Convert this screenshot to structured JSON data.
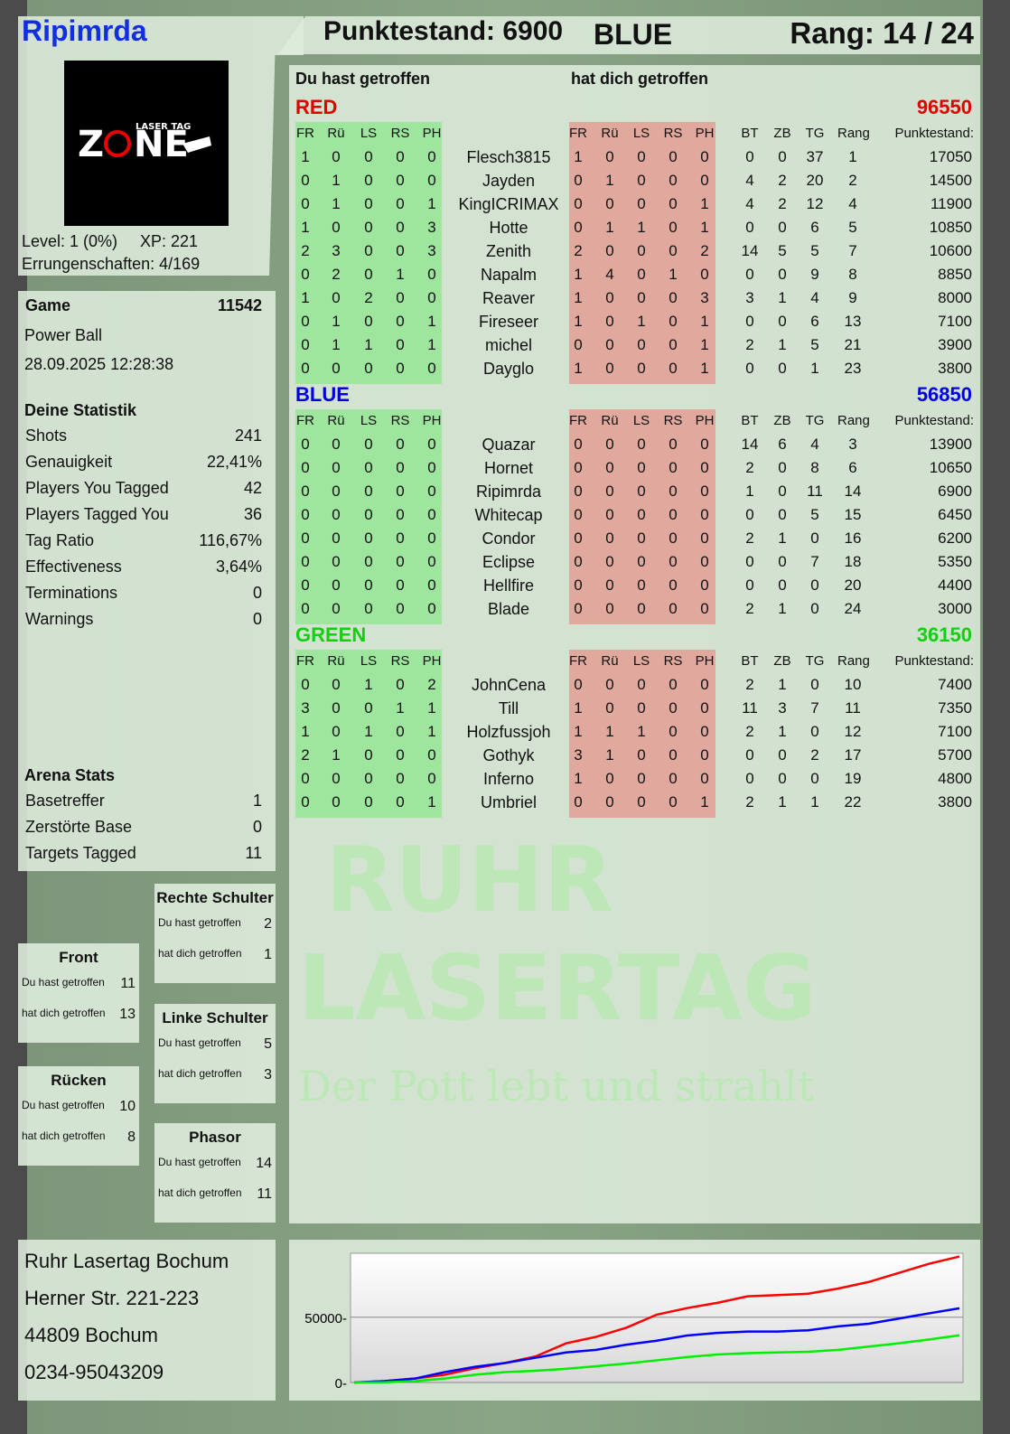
{
  "player": {
    "name": "Ripimrda",
    "level": "Level: 1 (0%)",
    "xp": "XP: 221",
    "achievements": "Errungenschaften: 4/169",
    "logo_text": "ZONE LASER TAG"
  },
  "header": {
    "score": "Punktestand: 6900",
    "team": "BLUE",
    "rank": "Rang: 14 / 24"
  },
  "game": {
    "label": "Game",
    "id": "11542",
    "mode": "Power Ball",
    "datetime": "28.09.2025 12:28:38"
  },
  "stats": {
    "title": "Deine Statistik",
    "rows": [
      [
        "Shots",
        "241"
      ],
      [
        "Genauigkeit",
        "22,41%"
      ],
      [
        "Players You Tagged",
        "42"
      ],
      [
        "Players Tagged You",
        "36"
      ],
      [
        "Tag Ratio",
        "116,67%"
      ],
      [
        "Effectiveness",
        "3,64%"
      ],
      [
        "Terminations",
        "0"
      ],
      [
        "Warnings",
        "0"
      ]
    ]
  },
  "arena": {
    "title": "Arena Stats",
    "rows": [
      [
        "Basetreffer",
        "1"
      ],
      [
        "Zerstörte Base",
        "0"
      ],
      [
        "Targets Tagged",
        "11"
      ]
    ]
  },
  "zones": [
    {
      "title": "Rechte Schulter",
      "hit": "2",
      "got": "1"
    },
    {
      "title": "Front",
      "hit": "11",
      "got": "13"
    },
    {
      "title": "Linke Schulter",
      "hit": "5",
      "got": "3"
    },
    {
      "title": "Rücken",
      "hit": "10",
      "got": "8"
    },
    {
      "title": "Phasor",
      "hit": "14",
      "got": "11"
    }
  ],
  "zone_labels": {
    "hit": "Du hast getroffen",
    "got": "hat dich getroffen"
  },
  "table": {
    "hit_label": "Du hast getroffen",
    "got_label": "hat dich getroffen",
    "columns": [
      "FR",
      "Rü",
      "LS",
      "RS",
      "PH",
      "FR",
      "Rü",
      "LS",
      "RS",
      "PH",
      "BT",
      "ZB",
      "TG",
      "Rang",
      "Punktestand:"
    ],
    "teams": [
      {
        "name": "RED",
        "color": "#e00000",
        "total": "96550",
        "players": [
          [
            "Flesch3815",
            [
              1,
              0,
              0,
              0,
              0
            ],
            [
              1,
              0,
              0,
              0,
              0
            ],
            [
              0,
              0,
              37,
              1,
              17050
            ]
          ],
          [
            "Jayden",
            [
              0,
              1,
              0,
              0,
              0
            ],
            [
              0,
              1,
              0,
              0,
              0
            ],
            [
              4,
              2,
              20,
              2,
              14500
            ]
          ],
          [
            "KingICRIMAX",
            [
              0,
              1,
              0,
              0,
              1
            ],
            [
              0,
              0,
              0,
              0,
              1
            ],
            [
              4,
              2,
              12,
              4,
              11900
            ]
          ],
          [
            "Hotte",
            [
              1,
              0,
              0,
              0,
              3
            ],
            [
              0,
              1,
              1,
              0,
              1
            ],
            [
              0,
              0,
              6,
              5,
              10850
            ]
          ],
          [
            "Zenith",
            [
              2,
              3,
              0,
              0,
              3
            ],
            [
              2,
              0,
              0,
              0,
              2
            ],
            [
              14,
              5,
              5,
              7,
              10600
            ]
          ],
          [
            "Napalm",
            [
              0,
              2,
              0,
              1,
              0
            ],
            [
              1,
              4,
              0,
              1,
              0
            ],
            [
              0,
              0,
              9,
              8,
              8850
            ]
          ],
          [
            "Reaver",
            [
              1,
              0,
              2,
              0,
              0
            ],
            [
              1,
              0,
              0,
              0,
              3
            ],
            [
              3,
              1,
              4,
              9,
              8000
            ]
          ],
          [
            "Fireseer",
            [
              0,
              1,
              0,
              0,
              1
            ],
            [
              1,
              0,
              1,
              0,
              1
            ],
            [
              0,
              0,
              6,
              13,
              7100
            ]
          ],
          [
            "michel",
            [
              0,
              1,
              1,
              0,
              1
            ],
            [
              0,
              0,
              0,
              0,
              1
            ],
            [
              2,
              1,
              5,
              21,
              3900
            ]
          ],
          [
            "Dayglo",
            [
              0,
              0,
              0,
              0,
              0
            ],
            [
              1,
              0,
              0,
              0,
              1
            ],
            [
              0,
              0,
              1,
              23,
              3800
            ]
          ]
        ]
      },
      {
        "name": "BLUE",
        "color": "#0000e0",
        "total": "56850",
        "players": [
          [
            "Quazar",
            [
              0,
              0,
              0,
              0,
              0
            ],
            [
              0,
              0,
              0,
              0,
              0
            ],
            [
              14,
              6,
              4,
              3,
              13900
            ]
          ],
          [
            "Hornet",
            [
              0,
              0,
              0,
              0,
              0
            ],
            [
              0,
              0,
              0,
              0,
              0
            ],
            [
              2,
              0,
              8,
              6,
              10650
            ]
          ],
          [
            "Ripimrda",
            [
              0,
              0,
              0,
              0,
              0
            ],
            [
              0,
              0,
              0,
              0,
              0
            ],
            [
              1,
              0,
              11,
              14,
              6900
            ]
          ],
          [
            "Whitecap",
            [
              0,
              0,
              0,
              0,
              0
            ],
            [
              0,
              0,
              0,
              0,
              0
            ],
            [
              0,
              0,
              5,
              15,
              6450
            ]
          ],
          [
            "Condor",
            [
              0,
              0,
              0,
              0,
              0
            ],
            [
              0,
              0,
              0,
              0,
              0
            ],
            [
              2,
              1,
              0,
              16,
              6200
            ]
          ],
          [
            "Eclipse",
            [
              0,
              0,
              0,
              0,
              0
            ],
            [
              0,
              0,
              0,
              0,
              0
            ],
            [
              0,
              0,
              7,
              18,
              5350
            ]
          ],
          [
            "Hellfire",
            [
              0,
              0,
              0,
              0,
              0
            ],
            [
              0,
              0,
              0,
              0,
              0
            ],
            [
              0,
              0,
              0,
              20,
              4400
            ]
          ],
          [
            "Blade",
            [
              0,
              0,
              0,
              0,
              0
            ],
            [
              0,
              0,
              0,
              0,
              0
            ],
            [
              2,
              1,
              0,
              24,
              3000
            ]
          ]
        ]
      },
      {
        "name": "GREEN",
        "color": "#10d010",
        "total": "36150",
        "players": [
          [
            "JohnCena",
            [
              0,
              0,
              1,
              0,
              2
            ],
            [
              0,
              0,
              0,
              0,
              0
            ],
            [
              2,
              1,
              0,
              10,
              7400
            ]
          ],
          [
            "Till",
            [
              3,
              0,
              0,
              1,
              1
            ],
            [
              1,
              0,
              0,
              0,
              0
            ],
            [
              11,
              3,
              7,
              11,
              7350
            ]
          ],
          [
            "Holzfussjoh",
            [
              1,
              0,
              1,
              0,
              1
            ],
            [
              1,
              1,
              1,
              0,
              0
            ],
            [
              2,
              1,
              0,
              12,
              7100
            ]
          ],
          [
            "Gothyk",
            [
              2,
              1,
              0,
              0,
              0
            ],
            [
              3,
              1,
              0,
              0,
              0
            ],
            [
              0,
              0,
              2,
              17,
              5700
            ]
          ],
          [
            "Inferno",
            [
              0,
              0,
              0,
              0,
              0
            ],
            [
              1,
              0,
              0,
              0,
              0
            ],
            [
              0,
              0,
              0,
              19,
              4800
            ]
          ],
          [
            "Umbriel",
            [
              0,
              0,
              0,
              0,
              1
            ],
            [
              0,
              0,
              0,
              0,
              1
            ],
            [
              2,
              1,
              1,
              22,
              3800
            ]
          ]
        ]
      }
    ]
  },
  "address": [
    "Ruhr Lasertag Bochum",
    "Herner Str. 221-223",
    "44809 Bochum",
    "0234-95043209"
  ],
  "watermark": {
    "line1": "RUHR",
    "line2": "LASERTAG",
    "slogan": "Der Pott lebt und strahlt"
  },
  "chart_data": {
    "type": "line",
    "ylim": [
      0,
      99000
    ],
    "yticks": [
      "0",
      "50000"
    ],
    "grid": true,
    "series": [
      {
        "color": "#ff0000",
        "values": [
          0,
          1000,
          3000,
          6000,
          11000,
          15000,
          20000,
          30000,
          35000,
          42000,
          52000,
          57000,
          61000,
          66000,
          67000,
          68000,
          72000,
          77000,
          84000,
          91000,
          96550
        ]
      },
      {
        "color": "#0000ff",
        "values": [
          0,
          1000,
          3000,
          8000,
          12000,
          15000,
          19000,
          23000,
          25000,
          29000,
          32000,
          36000,
          38000,
          39000,
          39000,
          40000,
          43000,
          45000,
          49000,
          53000,
          56850
        ]
      },
      {
        "color": "#00ee00",
        "values": [
          0,
          200,
          1000,
          3000,
          6000,
          8000,
          9000,
          10500,
          12500,
          14500,
          17000,
          19500,
          21500,
          22500,
          23000,
          23500,
          25000,
          27500,
          30000,
          33000,
          36150
        ]
      }
    ]
  }
}
